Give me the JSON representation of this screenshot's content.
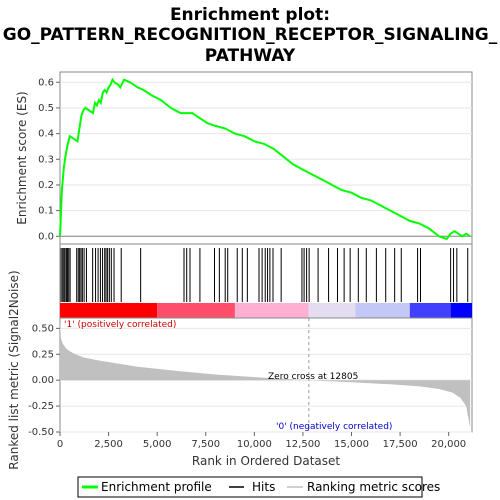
{
  "chart_data": {
    "type": "line",
    "title_lines": [
      "Enrichment plot:",
      "GO_PATTERN_RECOGNITION_RECEPTOR_SIGNALING_",
      "PATHWAY"
    ],
    "es_panel": {
      "ylabel": "Enrichment score (ES)",
      "ylim": [
        -0.03,
        0.64
      ],
      "yticks": [
        "0.0",
        "0.1",
        "0.2",
        "0.3",
        "0.4",
        "0.5",
        "0.6"
      ],
      "ytick_values": [
        0.0,
        0.1,
        0.2,
        0.3,
        0.4,
        0.5,
        0.6
      ],
      "series": {
        "name": "Enrichment profile",
        "color": "#00ff00",
        "x": [
          0,
          100,
          200,
          300,
          400,
          500,
          700,
          900,
          1000,
          1100,
          1200,
          1300,
          1500,
          1700,
          1800,
          1900,
          2000,
          2100,
          2200,
          2300,
          2400,
          2500,
          2600,
          2700,
          2800,
          3000,
          3100,
          3300,
          3600,
          4000,
          4300,
          4700,
          5200,
          5700,
          6200,
          6500,
          6800,
          7200,
          7600,
          8000,
          8500,
          9000,
          9500,
          10000,
          10500,
          11000,
          11500,
          12000,
          12500,
          13000,
          13500,
          14000,
          14500,
          15000,
          15500,
          16000,
          16500,
          17000,
          17500,
          18000,
          18500,
          19000,
          19500,
          19900,
          20100,
          20300,
          20500,
          20700,
          20900,
          21100
        ],
        "values": [
          0.0,
          0.18,
          0.27,
          0.32,
          0.36,
          0.39,
          0.38,
          0.37,
          0.42,
          0.47,
          0.49,
          0.5,
          0.49,
          0.48,
          0.52,
          0.51,
          0.53,
          0.52,
          0.56,
          0.57,
          0.56,
          0.58,
          0.59,
          0.61,
          0.6,
          0.59,
          0.58,
          0.61,
          0.6,
          0.58,
          0.57,
          0.55,
          0.53,
          0.5,
          0.48,
          0.48,
          0.48,
          0.46,
          0.44,
          0.43,
          0.42,
          0.4,
          0.39,
          0.37,
          0.36,
          0.34,
          0.31,
          0.28,
          0.26,
          0.24,
          0.22,
          0.2,
          0.18,
          0.17,
          0.15,
          0.14,
          0.12,
          0.1,
          0.08,
          0.06,
          0.05,
          0.03,
          0.0,
          -0.01,
          0.01,
          0.02,
          0.01,
          0.0,
          0.01,
          0.0
        ]
      }
    },
    "hits_panel": {
      "legend_name": "Hits",
      "hit_positions": [
        60,
        140,
        200,
        260,
        330,
        390,
        450,
        520,
        860,
        940,
        1010,
        1080,
        1150,
        1240,
        1360,
        1680,
        1830,
        1960,
        2080,
        2190,
        2300,
        2370,
        2450,
        2540,
        2640,
        2780,
        3150,
        4150,
        6380,
        6520,
        6690,
        7200,
        7950,
        8200,
        8500,
        8630,
        9120,
        9380,
        9640,
        10240,
        10400,
        10560,
        10680,
        10800,
        10960,
        11380,
        12450,
        12560,
        12690,
        12820,
        13280,
        13820,
        14280,
        14620,
        14930,
        15350,
        15760,
        16280,
        16760,
        17220,
        17560,
        18400,
        18550,
        20100,
        20250,
        20420,
        20980
      ],
      "bar_colors": [
        "#ff0000",
        "#ff4d6a",
        "#ffb0d2",
        "#e4dcf0",
        "#c4c8f6",
        "#4040ff",
        "#0000ff"
      ],
      "bar_stops": [
        0,
        5000,
        9000,
        12800,
        15200,
        18000,
        20100,
        21200
      ]
    },
    "metric_panel": {
      "ylabel": "Ranked list metric (Signal2Noise)",
      "ylim": [
        -0.5,
        0.6
      ],
      "yticks": [
        "0.50",
        "0.25",
        "0.00",
        "-0.25",
        "-0.50"
      ],
      "ytick_values": [
        0.5,
        0.25,
        0.0,
        -0.25,
        -0.5
      ],
      "legend_name": "Ranking metric scores",
      "x": [
        0,
        50,
        150,
        300,
        500,
        800,
        1200,
        2000,
        3000,
        4000,
        6000,
        8000,
        10000,
        12805,
        15000,
        17000,
        18500,
        19500,
        20200,
        20600,
        20900,
        21100
      ],
      "values": [
        0.57,
        0.4,
        0.35,
        0.31,
        0.28,
        0.25,
        0.22,
        0.19,
        0.16,
        0.13,
        0.09,
        0.055,
        0.03,
        0.0,
        -0.02,
        -0.04,
        -0.06,
        -0.085,
        -0.12,
        -0.17,
        -0.25,
        -0.46
      ],
      "annotations": {
        "positive": "'1' (positively correlated)",
        "negative": "'0' (negatively correlated)",
        "zero_cross": "Zero cross at 12805"
      },
      "zero_cross_x": 12805
    },
    "xaxis": {
      "label": "Rank in Ordered Dataset",
      "xlim": [
        0,
        21200
      ],
      "ticks": [
        "0",
        "2,500",
        "5,000",
        "7,500",
        "10,000",
        "12,500",
        "15,000",
        "17,500",
        "20,000"
      ],
      "tick_values": [
        0,
        2500,
        5000,
        7500,
        10000,
        12500,
        15000,
        17500,
        20000
      ]
    },
    "legend": {
      "items": [
        "Enrichment profile",
        "Hits",
        "Ranking metric scores"
      ]
    }
  }
}
